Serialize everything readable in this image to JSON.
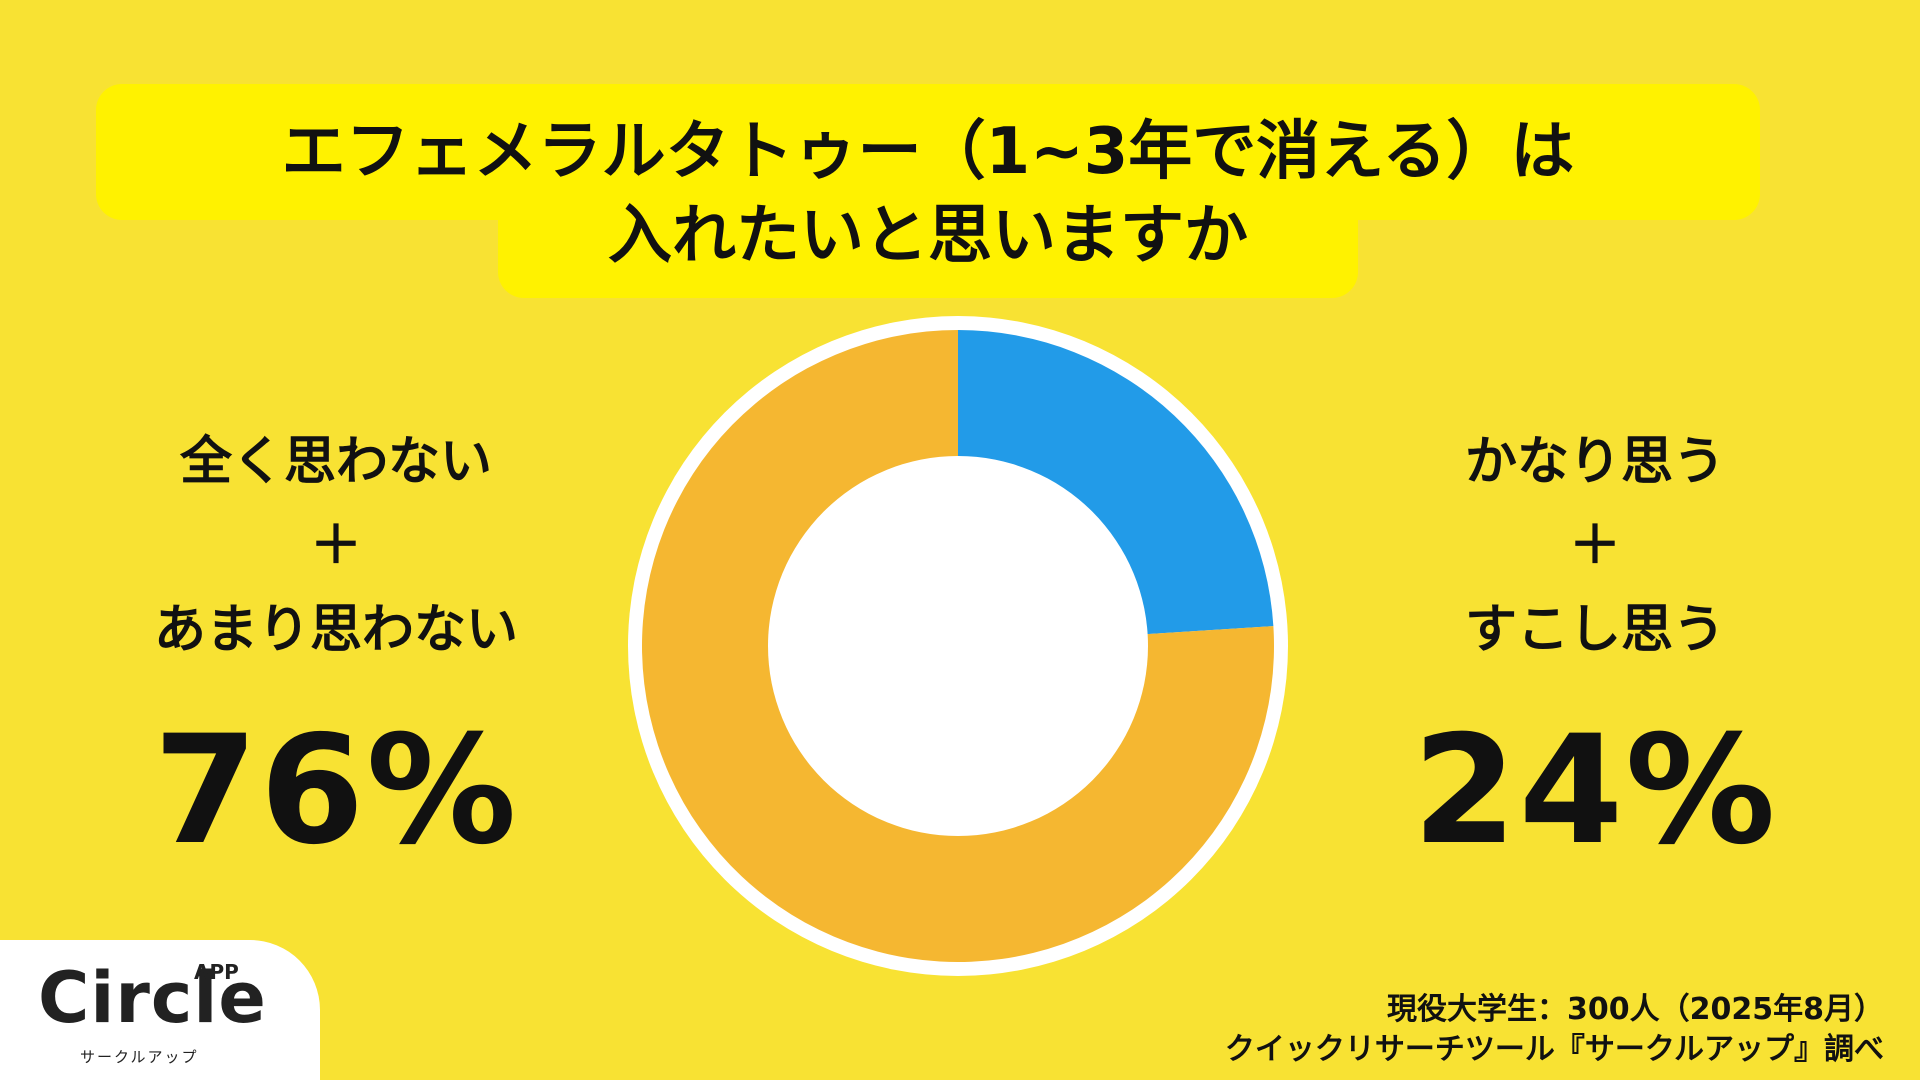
{
  "title": {
    "line1": "エフェメラルタトゥー（1~3年で消える）は",
    "line2": "入れたいと思いますか"
  },
  "left": {
    "label1": "全く思わない",
    "plus": "＋",
    "label2": "あまり思わない",
    "percent": "76%"
  },
  "right": {
    "label1": "かなり思う",
    "plus": "＋",
    "label2": "すこし思う",
    "percent": "24%"
  },
  "chart_data": {
    "type": "pie",
    "style": "donut",
    "categories": [
      "かなり思う＋すこし思う",
      "全く思わない＋あまり思わない"
    ],
    "values": [
      24,
      76
    ],
    "colors": [
      "#229BE8",
      "#F5B731"
    ]
  },
  "colors": {
    "background": "#F8E233",
    "title_bg": "#FFF200",
    "ring_border": "#FFFFFF"
  },
  "logo": {
    "name": "Circle",
    "app": "APP",
    "sub": "サークルアップ"
  },
  "source": {
    "line1": "現役大学生：300人（2025年8月）",
    "line2": "クイックリサーチツール『サークルアップ』調べ"
  }
}
